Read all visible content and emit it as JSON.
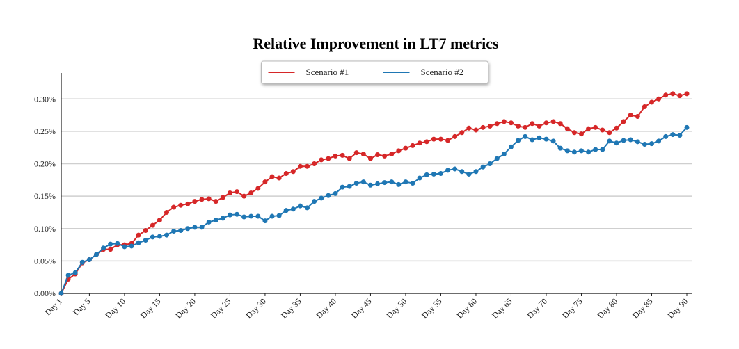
{
  "chart_data": {
    "type": "line",
    "title": "Relative Improvement in LT7 metrics",
    "categories": [
      "Day 1",
      null,
      null,
      null,
      "Day 5",
      null,
      null,
      null,
      null,
      "Day 10",
      null,
      null,
      null,
      null,
      "Day 15",
      null,
      null,
      null,
      null,
      "Day 20",
      null,
      null,
      null,
      null,
      "Day 25",
      null,
      null,
      null,
      null,
      "Day 30",
      null,
      null,
      null,
      null,
      "Day 35",
      null,
      null,
      null,
      null,
      "Day 40",
      null,
      null,
      null,
      null,
      "Day 45",
      null,
      null,
      null,
      null,
      "Day 50",
      null,
      null,
      null,
      null,
      "Day 55",
      null,
      null,
      null,
      null,
      "Day 60",
      null,
      null,
      null,
      null,
      "Day 65",
      null,
      null,
      null,
      null,
      "Day 70",
      null,
      null,
      null,
      null,
      "Day 75",
      null,
      null,
      null,
      null,
      "Day 80",
      null,
      null,
      null,
      null,
      "Day 85",
      null,
      null,
      null,
      null,
      "Day 90"
    ],
    "series": [
      {
        "name": "Scenario #1",
        "color": "#d62728",
        "values": [
          0,
          0.022,
          0.03,
          0.047,
          0.052,
          0.06,
          0.068,
          0.068,
          0.075,
          0.075,
          0.077,
          0.09,
          0.097,
          0.105,
          0.113,
          0.125,
          0.133,
          0.136,
          0.138,
          0.142,
          0.145,
          0.146,
          0.142,
          0.148,
          0.155,
          0.157,
          0.15,
          0.155,
          0.162,
          0.172,
          0.18,
          0.178,
          0.185,
          0.188,
          0.196,
          0.196,
          0.2,
          0.206,
          0.208,
          0.212,
          0.213,
          0.208,
          0.217,
          0.215,
          0.208,
          0.214,
          0.212,
          0.215,
          0.22,
          0.224,
          0.228,
          0.232,
          0.234,
          0.238,
          0.238,
          0.236,
          0.242,
          0.248,
          0.255,
          0.252,
          0.256,
          0.258,
          0.262,
          0.265,
          0.263,
          0.258,
          0.256,
          0.262,
          0.258,
          0.263,
          0.265,
          0.262,
          0.254,
          0.248,
          0.246,
          0.254,
          0.256,
          0.252,
          0.248,
          0.255,
          0.265,
          0.275,
          0.273,
          0.288,
          0.295,
          0.3,
          0.306,
          0.308,
          0.305,
          0.308
        ]
      },
      {
        "name": "Scenario #2",
        "color": "#1f77b4",
        "values": [
          0,
          0.028,
          0.032,
          0.048,
          0.052,
          0.06,
          0.07,
          0.076,
          0.077,
          0.072,
          0.073,
          0.078,
          0.082,
          0.087,
          0.088,
          0.09,
          0.096,
          0.097,
          0.1,
          0.102,
          0.102,
          0.11,
          0.113,
          0.116,
          0.121,
          0.122,
          0.118,
          0.119,
          0.119,
          0.112,
          0.119,
          0.12,
          0.128,
          0.13,
          0.135,
          0.132,
          0.142,
          0.147,
          0.151,
          0.154,
          0.164,
          0.165,
          0.17,
          0.172,
          0.167,
          0.169,
          0.171,
          0.172,
          0.168,
          0.172,
          0.17,
          0.178,
          0.183,
          0.184,
          0.185,
          0.19,
          0.192,
          0.188,
          0.184,
          0.188,
          0.195,
          0.2,
          0.208,
          0.215,
          0.226,
          0.236,
          0.242,
          0.237,
          0.24,
          0.238,
          0.235,
          0.224,
          0.22,
          0.218,
          0.22,
          0.218,
          0.222,
          0.222,
          0.235,
          0.232,
          0.236,
          0.237,
          0.234,
          0.23,
          0.231,
          0.235,
          0.242,
          0.245,
          0.244,
          0.256
        ]
      }
    ],
    "ylim": [
      0,
      0.34
    ],
    "yticks": [
      {
        "value": 0,
        "label": "0.00%"
      },
      {
        "value": 0.05,
        "label": "0.05%"
      },
      {
        "value": 0.1,
        "label": "0.10%"
      },
      {
        "value": 0.15,
        "label": "0.15%"
      },
      {
        "value": 0.2,
        "label": "0.20%"
      },
      {
        "value": 0.25,
        "label": "0.25%"
      },
      {
        "value": 0.3,
        "label": "0.30%"
      }
    ],
    "grid": true,
    "legend": "upper center"
  }
}
